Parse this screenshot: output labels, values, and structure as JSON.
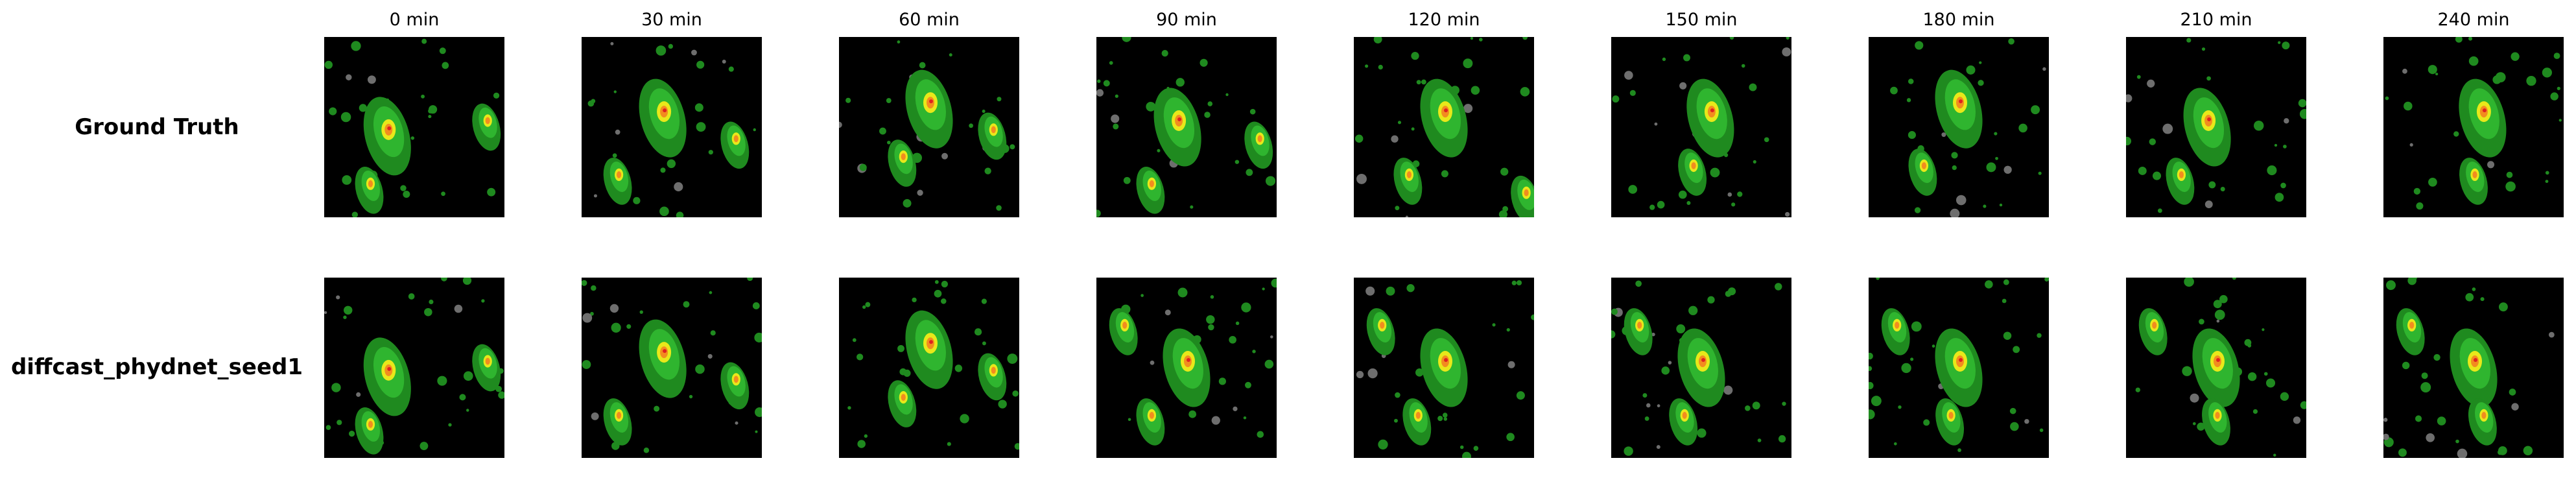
{
  "columns": [
    "0 min",
    "30 min",
    "60 min",
    "90 min",
    "120 min",
    "150 min",
    "180 min",
    "210 min",
    "240 min"
  ],
  "rows": [
    {
      "label": "Ground Truth"
    },
    {
      "label": "diffcast_phydnet_seed1"
    }
  ],
  "palette": {
    "background": "#000000",
    "light": "#1f8a1f",
    "moderate": "#2fb52f",
    "heavy": "#e8e81a",
    "very_heavy": "#f28c1f",
    "extreme": "#e02020",
    "clutter": "#6e6e6e"
  }
}
